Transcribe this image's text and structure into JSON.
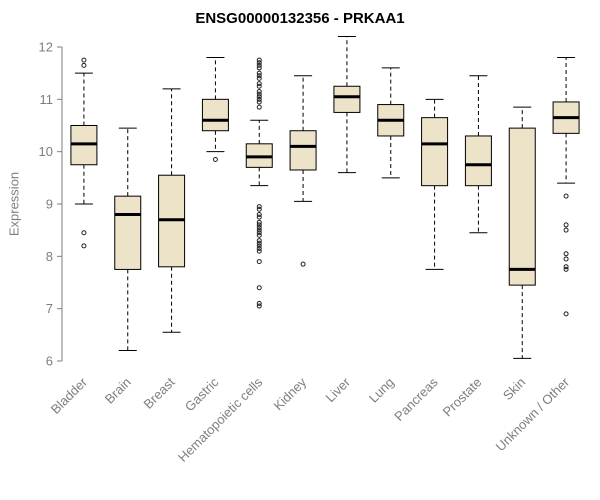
{
  "chart_data": {
    "type": "boxplot",
    "title": "ENSG00000132356 - PRKAA1",
    "ylabel": "Expression",
    "ylim": [
      6,
      12
    ],
    "yticks": [
      6,
      7,
      8,
      9,
      10,
      11,
      12
    ],
    "grid": false,
    "axis_color": "#7e7e7e",
    "box_fill": "#ece3c8",
    "box_stroke": "#000000",
    "median_color": "#000000",
    "whisker_style": "dashed",
    "categories": [
      "Bladder",
      "Brain",
      "Breast",
      "Gastric",
      "Hematopoietic cells",
      "Kidney",
      "Liver",
      "Lung",
      "Pancreas",
      "Prostate",
      "Skin",
      "Unknown / Other"
    ],
    "series": [
      {
        "label": "Bladder",
        "whislo": 9.0,
        "q1": 9.75,
        "med": 10.15,
        "q3": 10.5,
        "whishi": 11.5,
        "fliers": [
          11.75,
          11.65,
          8.45,
          8.2
        ]
      },
      {
        "label": "Brain",
        "whislo": 6.2,
        "q1": 7.75,
        "med": 8.8,
        "q3": 9.15,
        "whishi": 10.45,
        "fliers": []
      },
      {
        "label": "Breast",
        "whislo": 6.55,
        "q1": 7.8,
        "med": 8.7,
        "q3": 9.55,
        "whishi": 11.2,
        "fliers": []
      },
      {
        "label": "Gastric",
        "whislo": 10.0,
        "q1": 10.4,
        "med": 10.6,
        "q3": 11.0,
        "whishi": 11.8,
        "fliers": [
          9.85
        ]
      },
      {
        "label": "Hematopoietic cells",
        "whislo": 9.35,
        "q1": 9.7,
        "med": 9.9,
        "q3": 10.15,
        "whishi": 10.6,
        "fliers": [
          11.75,
          11.7,
          11.65,
          11.6,
          11.5,
          11.45,
          11.4,
          11.3,
          11.25,
          11.15,
          11.1,
          11.05,
          11.0,
          10.95,
          10.85,
          8.95,
          8.9,
          8.8,
          8.75,
          8.65,
          8.6,
          8.55,
          8.5,
          8.45,
          8.4,
          8.3,
          8.25,
          8.2,
          8.15,
          8.1,
          7.9,
          7.4,
          7.1,
          7.05
        ]
      },
      {
        "label": "Kidney",
        "whislo": 9.05,
        "q1": 9.65,
        "med": 10.1,
        "q3": 10.4,
        "whishi": 11.45,
        "fliers": [
          7.85
        ]
      },
      {
        "label": "Liver",
        "whislo": 9.6,
        "q1": 10.75,
        "med": 11.05,
        "q3": 11.25,
        "whishi": 12.2,
        "fliers": []
      },
      {
        "label": "Lung",
        "whislo": 9.5,
        "q1": 10.3,
        "med": 10.6,
        "q3": 10.9,
        "whishi": 11.6,
        "fliers": []
      },
      {
        "label": "Pancreas",
        "whislo": 7.75,
        "q1": 9.35,
        "med": 10.15,
        "q3": 10.65,
        "whishi": 11.0,
        "fliers": []
      },
      {
        "label": "Prostate",
        "whislo": 8.45,
        "q1": 9.35,
        "med": 9.75,
        "q3": 10.3,
        "whishi": 11.45,
        "fliers": []
      },
      {
        "label": "Skin",
        "whislo": 6.05,
        "q1": 7.45,
        "med": 7.75,
        "q3": 10.45,
        "whishi": 10.85,
        "fliers": []
      },
      {
        "label": "Unknown / Other",
        "whislo": 9.4,
        "q1": 10.35,
        "med": 10.65,
        "q3": 10.95,
        "whishi": 11.8,
        "fliers": [
          9.15,
          8.6,
          8.5,
          8.05,
          7.95,
          7.8,
          7.75,
          6.9
        ]
      }
    ]
  }
}
